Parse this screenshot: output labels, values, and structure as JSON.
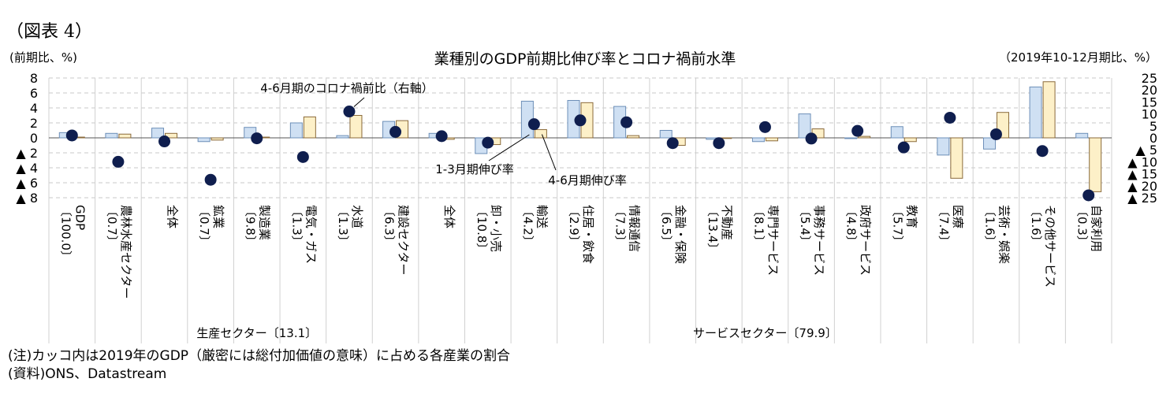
{
  "header": {
    "figure_label": "（図表 4）",
    "left_unit": "(前期比、%)",
    "right_unit": "（2019年10-12月期比、%）"
  },
  "footer": {
    "note": "(注)カッコ内は2019年のGDP（厳密には総付加価値の意味）に占める各産業の割合",
    "source": "(資料)ONS、Datastream"
  },
  "chart_data": {
    "type": "bar",
    "title": "業種別のGDP前期比伸び率とコロナ禍前水準",
    "left_axis": {
      "ylim": [
        -8,
        8
      ],
      "ticks": [
        8,
        6,
        4,
        2,
        0,
        -2,
        -4,
        -6,
        -8
      ],
      "tick_labels": [
        "8",
        "6",
        "4",
        "2",
        "0",
        "▲ 2",
        "▲ 4",
        "▲ 6",
        "▲ 8"
      ]
    },
    "right_axis": {
      "ylim": [
        -25,
        25
      ],
      "ticks": [
        25,
        20,
        15,
        10,
        5,
        0,
        -5,
        -10,
        -15,
        -20,
        -25
      ],
      "tick_labels": [
        "25",
        "20",
        "15",
        "10",
        "5",
        "0",
        "▲ 5",
        "▲ 10",
        "▲ 15",
        "▲ 20",
        "▲ 25"
      ]
    },
    "categories": [
      {
        "name": "GDP",
        "share": "〔100.0〕"
      },
      {
        "name": "農林水産セクター",
        "share": "〔0.7〕"
      },
      {
        "name": "全体",
        "share": ""
      },
      {
        "name": "鉱業",
        "share": "〔0.7〕"
      },
      {
        "name": "製造業",
        "share": "〔9.8〕"
      },
      {
        "name": "電気・ガス",
        "share": "〔1.3〕"
      },
      {
        "name": "水道",
        "share": "〔1.3〕"
      },
      {
        "name": "建設セクター",
        "share": "〔6.3〕"
      },
      {
        "name": "全体",
        "share": ""
      },
      {
        "name": "卸・小売",
        "share": "〔10.8〕"
      },
      {
        "name": "輸送",
        "share": "〔4.2〕"
      },
      {
        "name": "住居・飲食",
        "share": "〔2.9〕"
      },
      {
        "name": "情報通信",
        "share": "〔7.3〕"
      },
      {
        "name": "金融・保険",
        "share": "〔6.5〕"
      },
      {
        "name": "不動産",
        "share": "〔13.4〕"
      },
      {
        "name": "専門サービス",
        "share": "〔8.1〕"
      },
      {
        "name": "事務サービス",
        "share": "〔5.4〕"
      },
      {
        "name": "政府サービス",
        "share": "〔4.8〕"
      },
      {
        "name": "教育",
        "share": "〔5.7〕"
      },
      {
        "name": "医療",
        "share": "〔7.4〕"
      },
      {
        "name": "芸術・娯楽",
        "share": "〔1.6〕"
      },
      {
        "name": "その他サービス",
        "share": "〔1.6〕"
      },
      {
        "name": "自家利用",
        "share": "〔0.3〕"
      }
    ],
    "groups": [
      {
        "label": "生産セクター〔13.1〕",
        "from": 2,
        "to": 6
      },
      {
        "label": "サービスセクター〔79.9〕",
        "from": 8,
        "to": 22
      }
    ],
    "series": [
      {
        "name": "1-3月期伸び率",
        "axis": "left",
        "kind": "bar",
        "color": "#cfe0f3",
        "values": [
          0.7,
          0.6,
          1.3,
          -0.5,
          1.4,
          2.0,
          0.3,
          2.2,
          0.6,
          -2.1,
          4.9,
          5.0,
          4.2,
          1.0,
          -0.2,
          -0.5,
          3.2,
          -0.1,
          1.5,
          -2.3,
          -1.5,
          6.8,
          0.6
        ]
      },
      {
        "name": "4-6月期伸び率",
        "axis": "left",
        "kind": "bar",
        "color": "#fdf0c8",
        "values": [
          0.1,
          0.5,
          0.6,
          -0.3,
          0.1,
          2.8,
          3.0,
          2.3,
          -0.2,
          -0.9,
          1.1,
          4.7,
          0.3,
          -1.0,
          0.0,
          -0.4,
          1.2,
          0.2,
          -0.5,
          -5.4,
          3.4,
          7.5,
          -7.2
        ]
      },
      {
        "name": "4-6月期のコロナ禍前比（右軸）",
        "axis": "right",
        "kind": "dot",
        "color": "#0f1e4e",
        "values": [
          1.0,
          -10.0,
          -1.5,
          -17.5,
          -0.2,
          -8.0,
          11.0,
          2.5,
          0.7,
          -2.0,
          5.7,
          7.3,
          6.5,
          -2.2,
          -2.2,
          4.5,
          -0.3,
          2.9,
          -4.0,
          8.4,
          1.5,
          -5.5,
          -24.0
        ]
      }
    ],
    "annotations": [
      {
        "text": "4-6月期のコロナ禍前比（右軸）",
        "target_series": 2,
        "target_index": 6
      },
      {
        "text": "1-3月期伸び率",
        "target_series": 0,
        "target_index": 10
      },
      {
        "text": "4-6月期伸び率",
        "target_series": 1,
        "target_index": 10
      }
    ],
    "grid": true,
    "legend": "none"
  }
}
